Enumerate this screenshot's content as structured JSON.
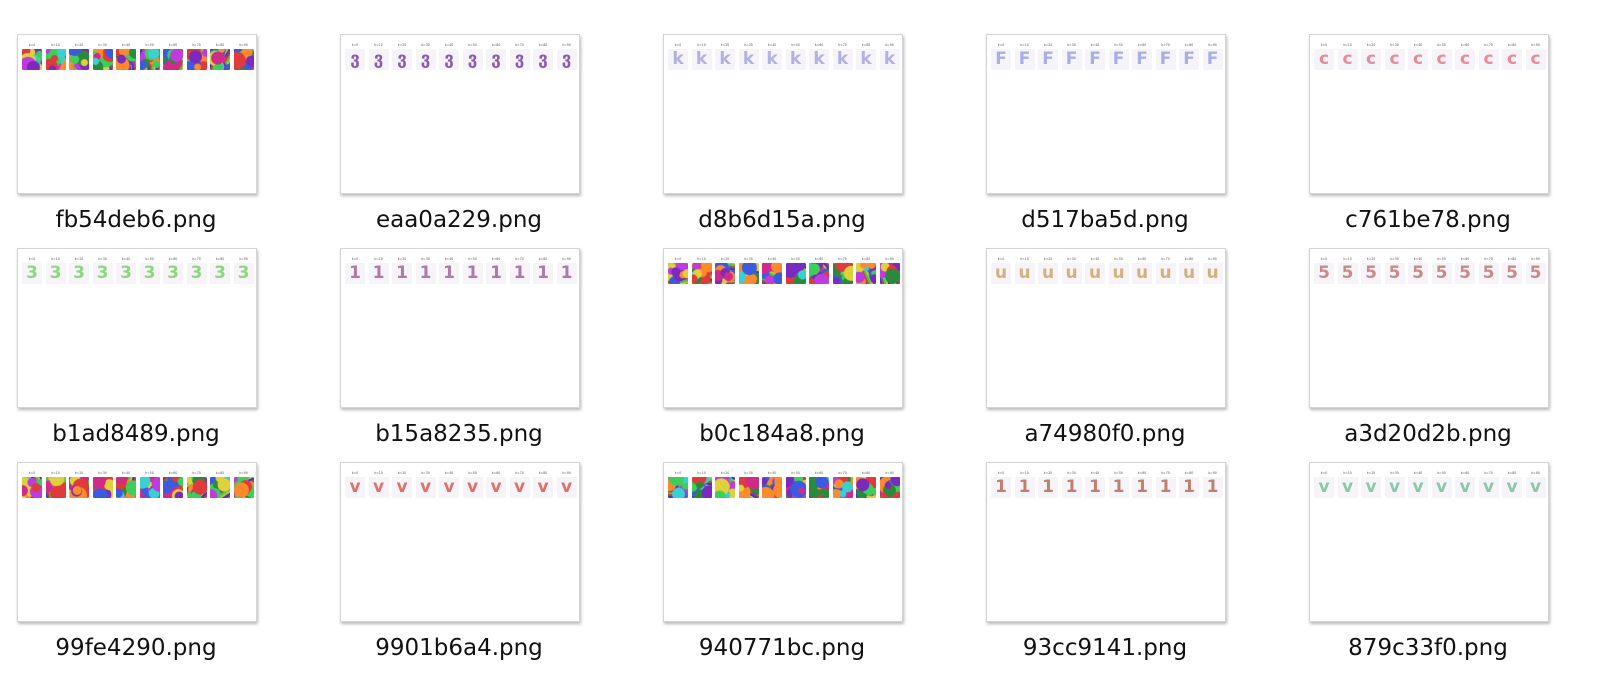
{
  "step_labels": [
    "k=0",
    "k=10",
    "k=20",
    "k=30",
    "k=40",
    "k=50",
    "k=60",
    "k=70",
    "k=80",
    "k=90"
  ],
  "files": [
    {
      "name": "fb54deb6.png",
      "kind": "noise",
      "glyph": "",
      "color": ""
    },
    {
      "name": "eaa0a229.png",
      "kind": "glyph",
      "glyph": "ვ",
      "color": "#8a5cb0"
    },
    {
      "name": "d8b6d15a.png",
      "kind": "glyph",
      "glyph": "k",
      "color": "#b3b0e4"
    },
    {
      "name": "d517ba5d.png",
      "kind": "glyph",
      "glyph": "F",
      "color": "#a9aee8"
    },
    {
      "name": "c761be78.png",
      "kind": "glyph",
      "glyph": "c",
      "color": "#e88a9a"
    },
    {
      "name": "b1ad8489.png",
      "kind": "glyph",
      "glyph": "3",
      "color": "#8fd680"
    },
    {
      "name": "b15a8235.png",
      "kind": "glyph",
      "glyph": "1",
      "color": "#b07aa8"
    },
    {
      "name": "b0c184a8.png",
      "kind": "noise",
      "glyph": "",
      "color": ""
    },
    {
      "name": "a74980f0.png",
      "kind": "glyph",
      "glyph": "u",
      "color": "#d4b07a"
    },
    {
      "name": "a3d20d2b.png",
      "kind": "glyph",
      "glyph": "5",
      "color": "#c88a8a"
    },
    {
      "name": "99fe4290.png",
      "kind": "noise",
      "glyph": "",
      "color": ""
    },
    {
      "name": "9901b6a4.png",
      "kind": "glyph",
      "glyph": "v",
      "color": "#e0706a"
    },
    {
      "name": "940771bc.png",
      "kind": "noise",
      "glyph": "",
      "color": ""
    },
    {
      "name": "93cc9141.png",
      "kind": "glyph",
      "glyph": "1",
      "color": "#c08070"
    },
    {
      "name": "879c33f0.png",
      "kind": "glyph",
      "glyph": "v",
      "color": "#8ac8a8"
    }
  ]
}
